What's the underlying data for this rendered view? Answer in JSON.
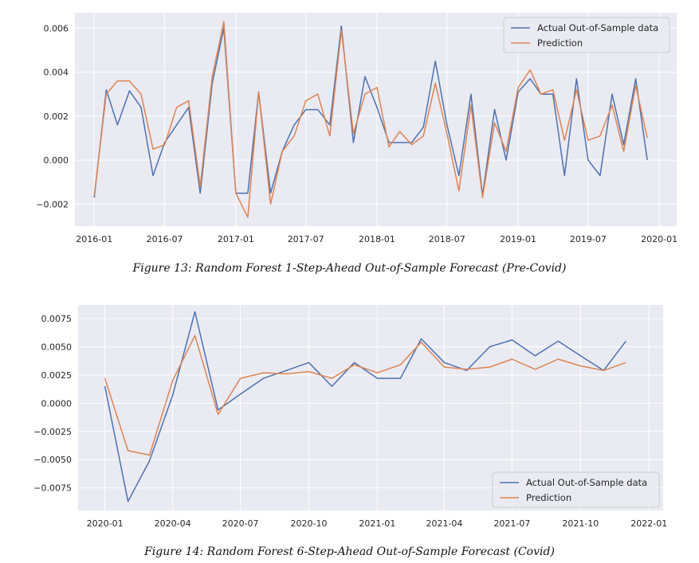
{
  "colors": {
    "plot_bg": "#eaeaf2",
    "grid": "#ffffff",
    "actual": "#4c72b0",
    "prediction": "#dd8452"
  },
  "chart_data": [
    {
      "type": "line",
      "caption": "Figure 13: Random Forest 1-Step-Ahead Out-of-Sample Forecast (Pre-Covid)",
      "x_unit": "month",
      "x": [
        "2016-01",
        "2016-02",
        "2016-03",
        "2016-04",
        "2016-05",
        "2016-06",
        "2016-07",
        "2016-08",
        "2016-09",
        "2016-10",
        "2016-11",
        "2016-12",
        "2017-01",
        "2017-02",
        "2017-03",
        "2017-04",
        "2017-05",
        "2017-06",
        "2017-07",
        "2017-08",
        "2017-09",
        "2017-10",
        "2017-11",
        "2017-12",
        "2018-01",
        "2018-02",
        "2018-03",
        "2018-04",
        "2018-05",
        "2018-06",
        "2018-07",
        "2018-08",
        "2018-09",
        "2018-10",
        "2018-11",
        "2018-12",
        "2019-01",
        "2019-02",
        "2019-03",
        "2019-04",
        "2019-05",
        "2019-06",
        "2019-07",
        "2019-08",
        "2019-09",
        "2019-10",
        "2019-11",
        "2019-12"
      ],
      "series": [
        {
          "name": "Actual Out-of-Sample data",
          "values": [
            -0.0017,
            0.0032,
            0.0016,
            0.00315,
            0.0024,
            -0.0007,
            0.0008,
            0.0016,
            0.0024,
            -0.0015,
            0.0035,
            0.006,
            -0.0015,
            -0.0015,
            0.0031,
            -0.0015,
            0.0004,
            0.0016,
            0.0023,
            0.0023,
            0.0016,
            0.0061,
            0.0008,
            0.0038,
            0.0024,
            0.0008,
            0.0008,
            0.0008,
            0.0015,
            0.0045,
            0.0016,
            -0.0007,
            0.003,
            -0.0016,
            0.0023,
            0.0,
            0.0031,
            0.0037,
            0.003,
            0.003,
            -0.0007,
            0.0037,
            0.0,
            -0.0007,
            0.003,
            0.0007,
            0.0037,
            0.0
          ]
        },
        {
          "name": "Prediction",
          "values": [
            -0.0016,
            0.003,
            0.0036,
            0.0036,
            0.003,
            0.0005,
            0.0007,
            0.0024,
            0.0027,
            -0.0012,
            0.0038,
            0.0063,
            -0.0015,
            -0.0026,
            0.0031,
            -0.002,
            0.0004,
            0.0011,
            0.0027,
            0.003,
            0.0011,
            0.0059,
            0.0012,
            0.003,
            0.0033,
            0.0006,
            0.0013,
            0.0007,
            0.0011,
            0.0035,
            0.0012,
            -0.0014,
            0.0025,
            -0.0017,
            0.0017,
            0.0004,
            0.0033,
            0.0041,
            0.003,
            0.0032,
            0.0009,
            0.0032,
            0.0009,
            0.0011,
            0.0025,
            0.0004,
            0.0034,
            0.001
          ]
        }
      ],
      "xticks": [
        "2016-01",
        "2016-07",
        "2017-01",
        "2017-07",
        "2018-01",
        "2018-07",
        "2019-01",
        "2019-07",
        "2020-01"
      ],
      "yticks": [
        -0.002,
        0.0,
        0.002,
        0.004,
        0.006
      ],
      "ytick_labels": [
        "−0.002",
        "0.000",
        "0.002",
        "0.004",
        "0.006"
      ],
      "xlim": [
        "2015-11-12",
        "2020-02-15"
      ],
      "ylim": [
        -0.003,
        0.0067
      ],
      "legend": "top-right",
      "grid": true
    },
    {
      "type": "line",
      "caption": "Figure 14: Random Forest 6-Step-Ahead Out-of-Sample Forecast (Covid)",
      "x_unit": "month",
      "x": [
        "2020-01",
        "2020-02",
        "2020-03",
        "2020-04",
        "2020-05",
        "2020-06",
        "2020-07",
        "2020-08",
        "2020-09",
        "2020-10",
        "2020-11",
        "2020-12",
        "2021-01",
        "2021-02",
        "2021-03",
        "2021-04",
        "2021-05",
        "2021-06",
        "2021-07",
        "2021-08",
        "2021-09",
        "2021-10",
        "2021-11",
        "2021-12"
      ],
      "series": [
        {
          "name": "Actual Out-of-Sample data",
          "values": [
            0.0015,
            -0.0087,
            -0.0051,
            0.0007,
            0.0081,
            -0.0006,
            0.0008,
            0.0022,
            0.0029,
            0.0036,
            0.0015,
            0.0036,
            0.0022,
            0.0022,
            0.0057,
            0.0036,
            0.0029,
            0.005,
            0.0056,
            0.0042,
            0.0055,
            0.0042,
            0.0029,
            0.0055
          ]
        },
        {
          "name": "Prediction",
          "values": [
            0.0022,
            -0.0042,
            -0.0046,
            0.002,
            0.006,
            -0.001,
            0.0022,
            0.0027,
            0.0026,
            0.0028,
            0.0022,
            0.0034,
            0.0027,
            0.0034,
            0.0054,
            0.0032,
            0.003,
            0.0032,
            0.0039,
            0.003,
            0.0039,
            0.0033,
            0.0029,
            0.0036
          ]
        }
      ],
      "xticks": [
        "2020-01",
        "2020-04",
        "2020-07",
        "2020-10",
        "2021-01",
        "2021-04",
        "2021-07",
        "2021-10",
        "2022-01"
      ],
      "yticks": [
        -0.0075,
        -0.005,
        -0.0025,
        0.0,
        0.0025,
        0.005,
        0.0075
      ],
      "ytick_labels": [
        "−0.0075",
        "−0.0050",
        "−0.0025",
        "0.0000",
        "0.0025",
        "0.0050",
        "0.0075"
      ],
      "xlim": [
        "2019-11-26",
        "2022-01-20"
      ],
      "ylim": [
        -0.0095,
        0.0087
      ],
      "legend": "bottom-right",
      "grid": true
    }
  ]
}
